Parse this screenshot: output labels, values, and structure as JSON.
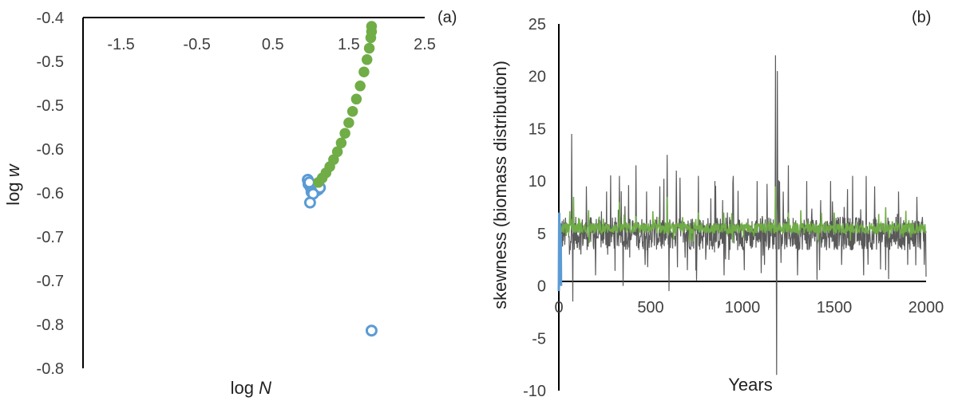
{
  "colors": {
    "blue": "#5b9bd5",
    "green": "#70ad47",
    "dark": "#595959",
    "axis": "#000000"
  },
  "chart_data": [
    {
      "type": "scatter",
      "panel_label": "(a)",
      "xlabel_prefix": "log ",
      "xlabel_var": "N",
      "ylabel_prefix": "log ",
      "ylabel_var": "w",
      "x_ticks": [
        "-1.5",
        "-0.5",
        "0.5",
        "1.5",
        "2.5"
      ],
      "x_tick_values": [
        -1.5,
        -0.5,
        0.5,
        1.5,
        2.5
      ],
      "xlim": [
        -2.0,
        2.5
      ],
      "y_ticks": [
        "-0.4",
        "-0.5",
        "-0.5",
        "-0.6",
        "-0.6",
        "-0.7",
        "-0.7",
        "-0.8",
        "-0.8"
      ],
      "y_tick_values": [
        -0.4,
        -0.45,
        -0.5,
        -0.55,
        -0.6,
        -0.65,
        -0.7,
        -0.75,
        -0.8
      ],
      "ylim": [
        -0.8,
        -0.4
      ],
      "series": [
        {
          "color": "blue",
          "marker": "open-circle",
          "points": [
            [
              0.96,
              -0.585
            ],
            [
              0.97,
              -0.59
            ],
            [
              0.99,
              -0.592
            ],
            [
              1.0,
              -0.594
            ],
            [
              1.02,
              -0.596
            ],
            [
              1.04,
              -0.597
            ],
            [
              1.06,
              -0.598
            ],
            [
              1.08,
              -0.597
            ],
            [
              1.1,
              -0.596
            ],
            [
              1.12,
              -0.594
            ],
            [
              0.98,
              -0.588
            ],
            [
              1.01,
              -0.599
            ],
            [
              1.03,
              -0.601
            ],
            [
              0.99,
              -0.611
            ],
            [
              1.8,
              -0.757
            ]
          ]
        },
        {
          "color": "green",
          "marker": "filled-circle",
          "points": [
            [
              1.1,
              -0.588
            ],
            [
              1.15,
              -0.583
            ],
            [
              1.2,
              -0.577
            ],
            [
              1.25,
              -0.57
            ],
            [
              1.3,
              -0.562
            ],
            [
              1.35,
              -0.553
            ],
            [
              1.4,
              -0.543
            ],
            [
              1.45,
              -0.532
            ],
            [
              1.5,
              -0.52
            ],
            [
              1.55,
              -0.507
            ],
            [
              1.6,
              -0.493
            ],
            [
              1.65,
              -0.478
            ],
            [
              1.7,
              -0.462
            ],
            [
              1.74,
              -0.448
            ],
            [
              1.77,
              -0.435
            ],
            [
              1.79,
              -0.423
            ],
            [
              1.8,
              -0.416
            ],
            [
              1.8,
              -0.41
            ]
          ]
        }
      ]
    },
    {
      "type": "line",
      "panel_label": "(b)",
      "xlabel": "Years",
      "ylabel": "skewness (biomass distribution)",
      "x_ticks": [
        "0",
        "500",
        "1000",
        "1500",
        "2000"
      ],
      "x_tick_values": [
        0,
        500,
        1000,
        1500,
        2000
      ],
      "xlim": [
        0,
        2000
      ],
      "y_ticks": [
        "25",
        "20",
        "15",
        "10",
        "5",
        "0",
        "-5",
        "-10"
      ],
      "y_tick_values": [
        25,
        20,
        15,
        10,
        5,
        0,
        -5,
        -10
      ],
      "ylim": [
        -10,
        25
      ],
      "series": [
        {
          "color": "dark",
          "baseline": 5.0,
          "spikes": [
            [
              70,
              14.5
            ],
            [
              75,
              -1.5
            ],
            [
              150,
              9.5
            ],
            [
              200,
              1.0
            ],
            [
              260,
              9.0
            ],
            [
              330,
              10.5
            ],
            [
              350,
              0.0
            ],
            [
              420,
              11.5
            ],
            [
              470,
              2.0
            ],
            [
              550,
              9.5
            ],
            [
              590,
              12.5
            ],
            [
              600,
              -0.5
            ],
            [
              640,
              11.0
            ],
            [
              700,
              1.5
            ],
            [
              760,
              10.5
            ],
            [
              800,
              2.5
            ],
            [
              850,
              10.0
            ],
            [
              900,
              1.0
            ],
            [
              950,
              10.5
            ],
            [
              1010,
              1.5
            ],
            [
              1080,
              10.0
            ],
            [
              1120,
              2.0
            ],
            [
              1180,
              22.0
            ],
            [
              1185,
              -8.5
            ],
            [
              1190,
              20.5
            ],
            [
              1250,
              11.5
            ],
            [
              1300,
              1.0
            ],
            [
              1350,
              10.0
            ],
            [
              1420,
              1.5
            ],
            [
              1480,
              10.0
            ],
            [
              1540,
              2.0
            ],
            [
              1600,
              10.5
            ],
            [
              1660,
              1.0
            ],
            [
              1720,
              9.5
            ],
            [
              1780,
              1.5
            ],
            [
              1850,
              9.0
            ],
            [
              1900,
              2.0
            ],
            [
              1950,
              8.5
            ],
            [
              1990,
              2.0
            ]
          ]
        },
        {
          "color": "green",
          "baseline": 5.5,
          "spikes": [
            [
              80,
              8.5
            ],
            [
              330,
              8.0
            ],
            [
              590,
              8.5
            ],
            [
              760,
              7.0
            ],
            [
              1180,
              9.5
            ],
            [
              1250,
              7.0
            ],
            [
              1500,
              7.0
            ],
            [
              1780,
              7.5
            ]
          ]
        },
        {
          "color": "blue",
          "points": [
            [
              0,
              -0.5
            ],
            [
              2,
              7.0
            ],
            [
              4,
              3.0
            ],
            [
              6,
              6.0
            ],
            [
              8,
              1.0
            ],
            [
              10,
              5.0
            ],
            [
              12,
              0.0
            ]
          ]
        }
      ]
    }
  ]
}
